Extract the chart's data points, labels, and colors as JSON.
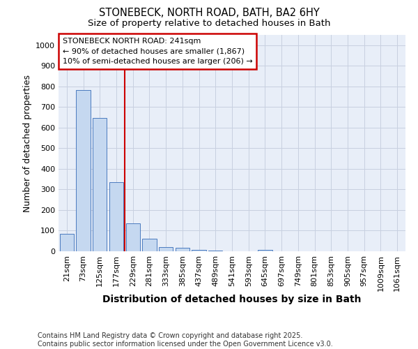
{
  "title_line1": "STONEBECK, NORTH ROAD, BATH, BA2 6HY",
  "title_line2": "Size of property relative to detached houses in Bath",
  "xlabel": "Distribution of detached houses by size in Bath",
  "ylabel": "Number of detached properties",
  "categories": [
    "21sqm",
    "73sqm",
    "125sqm",
    "177sqm",
    "229sqm",
    "281sqm",
    "333sqm",
    "385sqm",
    "437sqm",
    "489sqm",
    "541sqm",
    "593sqm",
    "645sqm",
    "697sqm",
    "749sqm",
    "801sqm",
    "853sqm",
    "905sqm",
    "957sqm",
    "1009sqm",
    "1061sqm"
  ],
  "values": [
    83,
    782,
    648,
    335,
    135,
    60,
    22,
    17,
    8,
    5,
    0,
    0,
    8,
    0,
    0,
    0,
    0,
    0,
    0,
    0,
    0
  ],
  "bar_color": "#c5d8f0",
  "bar_edge_color": "#4a7abf",
  "bar_linewidth": 0.7,
  "grid_color": "#c8d0e0",
  "background_color": "#e8eef8",
  "vline_color": "#cc0000",
  "vline_x": 3.5,
  "annotation_text": "STONEBECK NORTH ROAD: 241sqm\n← 90% of detached houses are smaller (1,867)\n10% of semi-detached houses are larger (206) →",
  "annotation_box_edgecolor": "#cc0000",
  "ylim": [
    0,
    1050
  ],
  "yticks": [
    0,
    100,
    200,
    300,
    400,
    500,
    600,
    700,
    800,
    900,
    1000
  ],
  "footer_text": "Contains HM Land Registry data © Crown copyright and database right 2025.\nContains public sector information licensed under the Open Government Licence v3.0.",
  "title_fontsize": 10.5,
  "subtitle_fontsize": 9.5,
  "tick_fontsize": 8,
  "ylabel_fontsize": 9,
  "xlabel_fontsize": 10,
  "annotation_fontsize": 8,
  "footer_fontsize": 7
}
